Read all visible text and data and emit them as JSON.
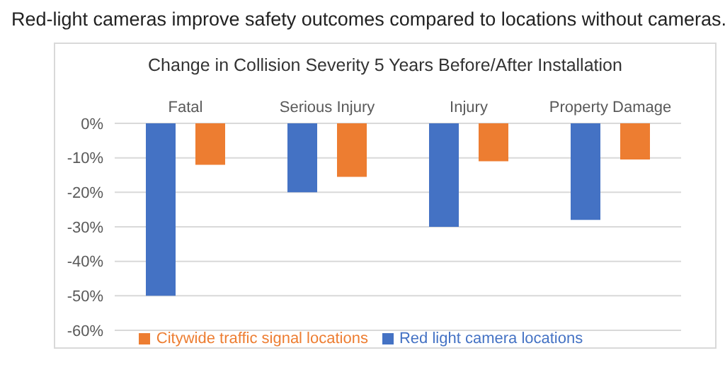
{
  "chart_data": {
    "type": "bar",
    "title": "Change in Collision Severity 5 Years Before/After Installation",
    "annotations": [
      "Red-light cameras improve safety outcomes compared to locations without cameras."
    ],
    "categories": [
      "Fatal",
      "Serious Injury",
      "Injury",
      "Property Damage"
    ],
    "series": [
      {
        "name": "Red light camera locations",
        "color": "#4472c4",
        "values": [
          -50,
          -20,
          -30,
          -28
        ]
      },
      {
        "name": "Citywide traffic signal locations",
        "color": "#ed7d31",
        "values": [
          -12,
          -15.5,
          -11,
          -10.5
        ]
      }
    ],
    "ylim": [
      -60,
      0
    ],
    "yticks": [
      {
        "value": 0,
        "label": "0%"
      },
      {
        "value": -10,
        "label": "-10%"
      },
      {
        "value": -20,
        "label": "-20%"
      },
      {
        "value": -30,
        "label": "-30%"
      },
      {
        "value": -40,
        "label": "-40%"
      },
      {
        "value": -50,
        "label": "-50%"
      },
      {
        "value": -60,
        "label": "-60%"
      }
    ],
    "grid": "y",
    "legend": "bottom"
  }
}
